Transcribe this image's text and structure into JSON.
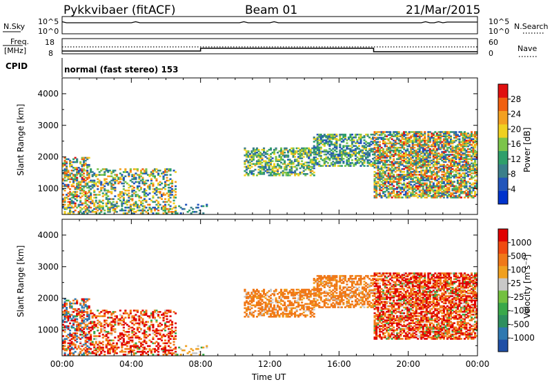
{
  "header": {
    "station": "Pykkvibaer (fitACF)",
    "beam": "Beam 01",
    "date": "21/Mar/2015"
  },
  "params": {
    "nsky_label": "N.Sky",
    "nsearch_label": "N.Search",
    "freq_label_line1": "Freq.",
    "freq_label_line2": "[MHz]",
    "nave_label": "Nave",
    "cpid_label": "CPID",
    "cpid_value": "normal (fast stereo) 153",
    "nsky_ticks": [
      "10^5",
      "10^0"
    ],
    "nsearch_ticks": [
      "10^5",
      "10^0"
    ],
    "freq_ticks": [
      "18",
      "8"
    ],
    "nave_ticks": [
      "60",
      "0"
    ]
  },
  "chart_data": [
    {
      "type": "heatmap",
      "name": "power",
      "ylabel": "Slant Range [km]",
      "yticks": [
        "4000",
        "3000",
        "2000",
        "1000"
      ],
      "ylim": [
        180,
        4500
      ],
      "xlim": [
        0,
        24
      ],
      "colorbar": {
        "label": "Power [dB]",
        "ticks": [
          "28",
          "24",
          "20",
          "16",
          "12",
          "8",
          "4"
        ],
        "colors": [
          "#0033cc",
          "#2255bb",
          "#3a7f8a",
          "#2f9f6a",
          "#7cc44a",
          "#f0d020",
          "#f3a020",
          "#f06010",
          "#e01010"
        ]
      }
    },
    {
      "type": "heatmap",
      "name": "velocity",
      "ylabel": "Slant Range [km]",
      "yticks": [
        "4000",
        "3000",
        "2000",
        "1000"
      ],
      "ylim": [
        180,
        4500
      ],
      "xlim": [
        0,
        24
      ],
      "xticks": [
        "00:00",
        "04:00",
        "08:00",
        "12:00",
        "16:00",
        "20:00",
        "00:00"
      ],
      "xlabel": "Time UT",
      "colorbar": {
        "label": "Velocity [m s⁻¹]",
        "ticks": [
          "1000",
          "500",
          "100",
          "25",
          "-25",
          "-100",
          "-500",
          "-1000"
        ],
        "colors": [
          "#1f4fa6",
          "#2e78b0",
          "#2e8f5e",
          "#3aa84a",
          "#74c040",
          "#c8c8c8",
          "#f0a020",
          "#f07818",
          "#f04a10",
          "#e00000"
        ]
      }
    }
  ]
}
